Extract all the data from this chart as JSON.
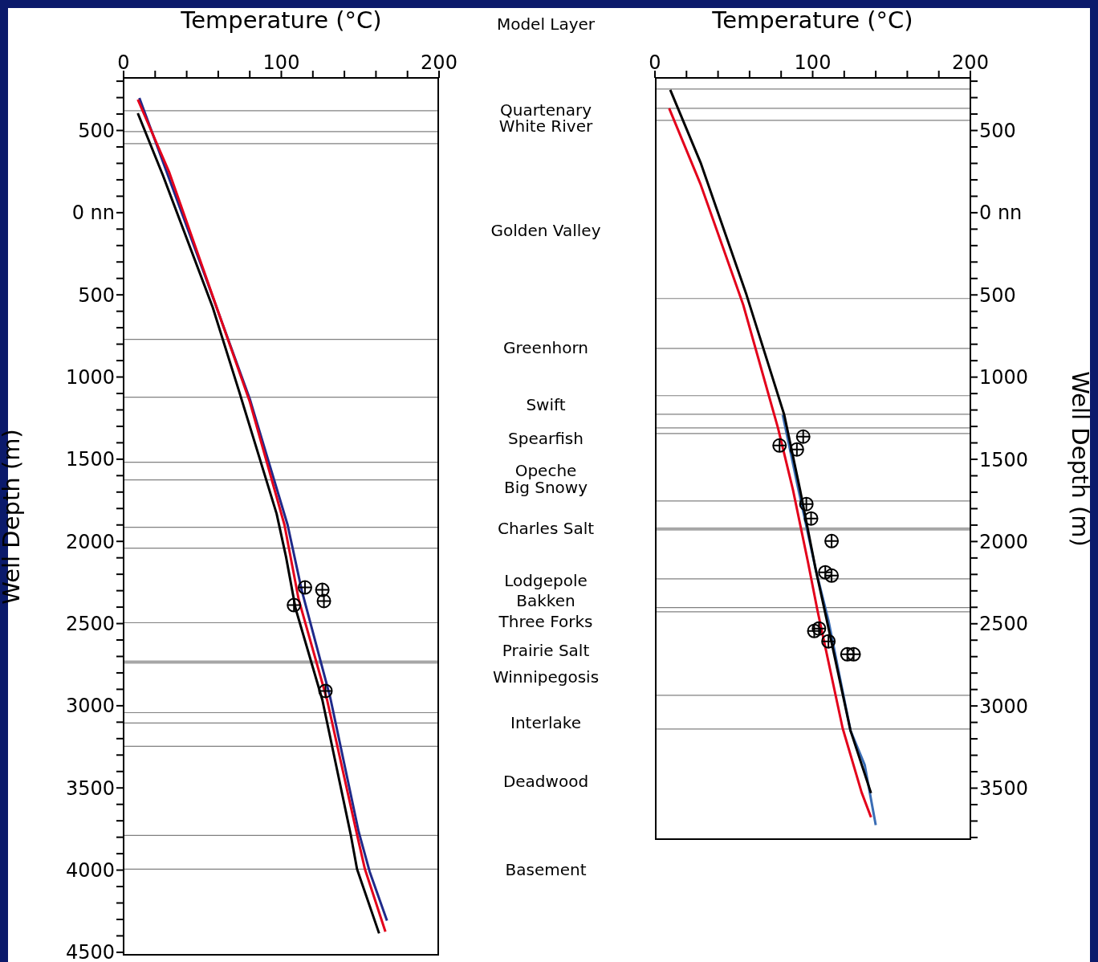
{
  "chart_data": [
    {
      "type": "line",
      "xlabel": "Temperature (°C)",
      "ylabel": "Well Depth (m)",
      "xlim": [
        0,
        200
      ],
      "ylim": [
        4520,
        -820
      ],
      "xticks": [
        0,
        {
          "value": 20,
          "label": null
        },
        {
          "value": 40,
          "label": null
        },
        {
          "value": 60,
          "label": null
        },
        {
          "value": 80,
          "label": null
        },
        100,
        {
          "value": 120,
          "label": null
        },
        {
          "value": 140,
          "label": null
        },
        {
          "value": 160,
          "label": null
        },
        {
          "value": 180,
          "label": null
        },
        200
      ],
      "yticks": [
        {
          "value": -800,
          "label": null
        },
        {
          "value": -700,
          "label": null
        },
        {
          "value": -600,
          "label": null
        },
        {
          "value": -500,
          "label": "500"
        },
        {
          "value": -400,
          "label": null
        },
        {
          "value": -300,
          "label": null
        },
        {
          "value": -200,
          "label": null
        },
        {
          "value": -100,
          "label": null
        },
        {
          "value": 0,
          "label": "0 nn"
        },
        {
          "value": 100,
          "label": null
        },
        {
          "value": 200,
          "label": null
        },
        {
          "value": 300,
          "label": null
        },
        {
          "value": 400,
          "label": null
        },
        500,
        {
          "value": 600,
          "label": null
        },
        {
          "value": 700,
          "label": null
        },
        {
          "value": 800,
          "label": null
        },
        {
          "value": 900,
          "label": null
        },
        1000,
        {
          "value": 1100,
          "label": null
        },
        {
          "value": 1200,
          "label": null
        },
        {
          "value": 1300,
          "label": null
        },
        {
          "value": 1400,
          "label": null
        },
        1500,
        {
          "value": 1600,
          "label": null
        },
        {
          "value": 1700,
          "label": null
        },
        {
          "value": 1800,
          "label": null
        },
        {
          "value": 1900,
          "label": null
        },
        2000,
        {
          "value": 2100,
          "label": null
        },
        {
          "value": 2200,
          "label": null
        },
        {
          "value": 2300,
          "label": null
        },
        {
          "value": 2400,
          "label": null
        },
        2500,
        {
          "value": 2600,
          "label": null
        },
        {
          "value": 2700,
          "label": null
        },
        {
          "value": 2800,
          "label": null
        },
        {
          "value": 2900,
          "label": null
        },
        3000,
        {
          "value": 3100,
          "label": null
        },
        {
          "value": 3200,
          "label": null
        },
        {
          "value": 3300,
          "label": null
        },
        {
          "value": 3400,
          "label": null
        },
        3500,
        {
          "value": 3600,
          "label": null
        },
        {
          "value": 3700,
          "label": null
        },
        {
          "value": 3800,
          "label": null
        },
        {
          "value": 3900,
          "label": null
        },
        4000,
        {
          "value": 4100,
          "label": null
        },
        {
          "value": 4200,
          "label": null
        },
        {
          "value": 4300,
          "label": null
        },
        {
          "value": 4400,
          "label": null
        },
        4500
      ],
      "grid": false,
      "series": [
        {
          "color": "#1f2a8a",
          "x": [
            10,
            53,
            80,
            104,
            113,
            131,
            149,
            156,
            167
          ],
          "values": [
            -698,
            420,
            1133,
            1900,
            2300,
            2949,
            3765,
            4009,
            4307
          ]
        },
        {
          "color": "#e3001b",
          "x": [
            9,
            29,
            80,
            102,
            111,
            129,
            148,
            153,
            166
          ],
          "values": [
            -688,
            -244,
            1150,
            1900,
            2353,
            2964,
            3784,
            3994,
            4375
          ]
        },
        {
          "color": "#000000",
          "x": [
            9,
            25,
            56.5,
            73,
            97,
            103,
            109,
            126,
            144,
            148,
            162
          ],
          "values": [
            -605,
            -225,
            576,
            1080,
            1831,
            2095,
            2407,
            2964,
            3784,
            3994,
            4385
          ]
        },
        {
          "type": "scatter",
          "color": "#000000",
          "marker": "circle",
          "x": [
            115,
            126,
            127,
            108,
            128
          ],
          "values": [
            2280,
            2295,
            2363,
            2388,
            2910
          ]
        }
      ],
      "ref_lines": [
        {
          "axis": "y",
          "value": -620
        },
        {
          "axis": "y",
          "value": -493
        },
        {
          "axis": "y",
          "value": -420
        },
        {
          "axis": "y",
          "value": 771
        },
        {
          "axis": "y",
          "value": 1123
        },
        {
          "axis": "y",
          "value": 1518
        },
        {
          "axis": "y",
          "value": 1626
        },
        {
          "axis": "y",
          "value": 1914
        },
        {
          "axis": "y",
          "value": 2041
        },
        {
          "axis": "y",
          "value": 2495
        },
        {
          "axis": "y",
          "value": 2734,
          "color": "#a6a6a6"
        },
        {
          "axis": "y",
          "value": 3042
        },
        {
          "axis": "y",
          "value": 3105
        },
        {
          "axis": "y",
          "value": 3247
        },
        {
          "axis": "y",
          "value": 3789
        },
        {
          "axis": "y",
          "value": 3994
        }
      ],
      "annotations": [
        "Model Layer",
        "Quartenary",
        "White River",
        "Golden Valley",
        "Greenhorn",
        "Swift",
        "Spearfish",
        "Opeche",
        "Big Snowy",
        "Charles Salt",
        "Lodgepole",
        "Bakken",
        "Three Forks",
        "Prairie Salt",
        "Winnipegosis",
        "Interlake",
        "Deadwood",
        "Basement"
      ]
    },
    {
      "type": "line",
      "xlabel": "Temperature (°C)",
      "ylabel": "Well Depth (m)",
      "xlim": [
        0,
        200
      ],
      "ylim": [
        3815,
        -820
      ],
      "xticks": [
        0,
        {
          "value": 20,
          "label": null
        },
        {
          "value": 40,
          "label": null
        },
        {
          "value": 60,
          "label": null
        },
        {
          "value": 80,
          "label": null
        },
        100,
        {
          "value": 120,
          "label": null
        },
        {
          "value": 140,
          "label": null
        },
        {
          "value": 160,
          "label": null
        },
        {
          "value": 180,
          "label": null
        },
        200
      ],
      "yticks": [
        {
          "value": -800,
          "label": null
        },
        {
          "value": -700,
          "label": null
        },
        {
          "value": -600,
          "label": null
        },
        {
          "value": -500,
          "label": "500"
        },
        {
          "value": -400,
          "label": null
        },
        {
          "value": -300,
          "label": null
        },
        {
          "value": -200,
          "label": null
        },
        {
          "value": -100,
          "label": null
        },
        {
          "value": 0,
          "label": "0 nn"
        },
        {
          "value": 100,
          "label": null
        },
        {
          "value": 200,
          "label": null
        },
        {
          "value": 300,
          "label": null
        },
        {
          "value": 400,
          "label": null
        },
        500,
        {
          "value": 600,
          "label": null
        },
        {
          "value": 700,
          "label": null
        },
        {
          "value": 800,
          "label": null
        },
        {
          "value": 900,
          "label": null
        },
        1000,
        {
          "value": 1100,
          "label": null
        },
        {
          "value": 1200,
          "label": null
        },
        {
          "value": 1300,
          "label": null
        },
        {
          "value": 1400,
          "label": null
        },
        1500,
        {
          "value": 1600,
          "label": null
        },
        {
          "value": 1700,
          "label": null
        },
        {
          "value": 1800,
          "label": null
        },
        {
          "value": 1900,
          "label": null
        },
        2000,
        {
          "value": 2100,
          "label": null
        },
        {
          "value": 2200,
          "label": null
        },
        {
          "value": 2300,
          "label": null
        },
        {
          "value": 2400,
          "label": null
        },
        2500,
        {
          "value": 2600,
          "label": null
        },
        {
          "value": 2700,
          "label": null
        },
        {
          "value": 2800,
          "label": null
        },
        {
          "value": 2900,
          "label": null
        },
        3000,
        {
          "value": 3100,
          "label": null
        },
        {
          "value": 3200,
          "label": null
        },
        {
          "value": 3300,
          "label": null
        },
        {
          "value": 3400,
          "label": null
        },
        3500,
        {
          "value": 3600,
          "label": null
        },
        {
          "value": 3700,
          "label": null
        },
        {
          "value": 3800,
          "label": null
        }
      ],
      "grid": false,
      "series": [
        {
          "color": "#3a6db5",
          "x": [
            81,
            91,
            102,
            110,
            124,
            133,
            140
          ],
          "values": [
            1230,
            1685,
            2173,
            2480,
            3150,
            3359,
            3725
          ]
        },
        {
          "color": "#000000",
          "x": [
            9.7,
            29,
            58,
            82,
            92,
            102,
            109,
            124,
            137
          ],
          "values": [
            -747,
            -303,
            498,
            1230,
            1685,
            2173,
            2480,
            3150,
            3530
          ]
        },
        {
          "color": "#e3001b",
          "x": [
            9,
            29,
            56,
            78,
            87.5,
            97,
            103,
            119,
            131,
            137
          ],
          "values": [
            -635,
            -171,
            561,
            1309,
            1685,
            2124,
            2417,
            3135,
            3525,
            3677
          ]
        },
        {
          "type": "scatter",
          "color": "#000000",
          "marker": "circle",
          "x": [
            94,
            79,
            90,
            96,
            99,
            112,
            108,
            112,
            101,
            104,
            110,
            122,
            126
          ],
          "values": [
            1362,
            1416,
            1440,
            1772,
            1860,
            1997,
            2187,
            2207,
            2544,
            2529,
            2607,
            2686,
            2686
          ]
        }
      ],
      "ref_lines": [
        {
          "axis": "y",
          "value": -752
        },
        {
          "axis": "y",
          "value": -635
        },
        {
          "axis": "y",
          "value": -562
        },
        {
          "axis": "y",
          "value": 522
        },
        {
          "axis": "y",
          "value": 825
        },
        {
          "axis": "y",
          "value": 1113
        },
        {
          "axis": "y",
          "value": 1226
        },
        {
          "axis": "y",
          "value": 1309
        },
        {
          "axis": "y",
          "value": 1343
        },
        {
          "axis": "y",
          "value": 1753
        },
        {
          "axis": "y",
          "value": 1924,
          "color": "#a6a6a6"
        },
        {
          "axis": "y",
          "value": 2227
        },
        {
          "axis": "y",
          "value": 2402
        },
        {
          "axis": "y",
          "value": 2427
        },
        {
          "axis": "y",
          "value": 2935
        },
        {
          "axis": "y",
          "value": 3140
        }
      ]
    }
  ]
}
